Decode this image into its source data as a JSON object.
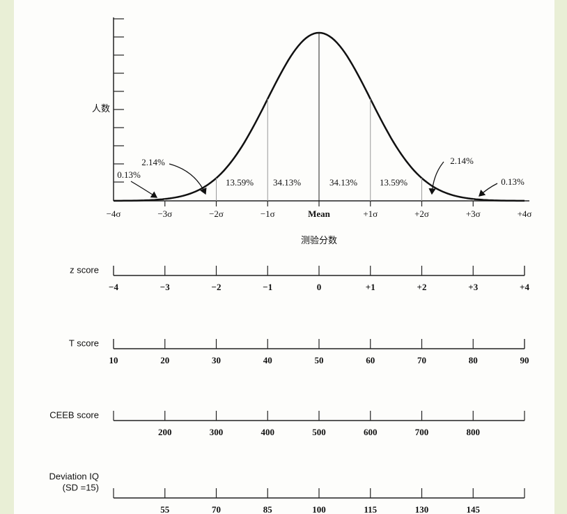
{
  "curve": {
    "y_label": "人数",
    "x_title": "测验分数",
    "x_labels": [
      "−4σ",
      "−3σ",
      "−2σ",
      "−1σ",
      "Mean",
      "+1σ",
      "+2σ",
      "+3σ",
      "+4σ"
    ],
    "percentages": [
      "0.13%",
      "2.14%",
      "13.59%",
      "34.13%",
      "34.13%",
      "13.59%",
      "2.14%",
      "0.13%"
    ]
  },
  "scales": [
    {
      "name": "z score",
      "labels": [
        "−4",
        "−3",
        "−2",
        "−1",
        "0",
        "+1",
        "+2",
        "+3",
        "+4"
      ]
    },
    {
      "name": "T score",
      "labels": [
        "10",
        "20",
        "30",
        "40",
        "50",
        "60",
        "70",
        "80",
        "90"
      ]
    },
    {
      "name": "CEEB score",
      "labels": [
        "200",
        "300",
        "400",
        "500",
        "600",
        "700",
        "800"
      ]
    },
    {
      "name": "Deviation IQ",
      "sub_name": "(SD =15)",
      "labels": [
        "55",
        "70",
        "85",
        "100",
        "115",
        "130",
        "145"
      ]
    }
  ]
}
